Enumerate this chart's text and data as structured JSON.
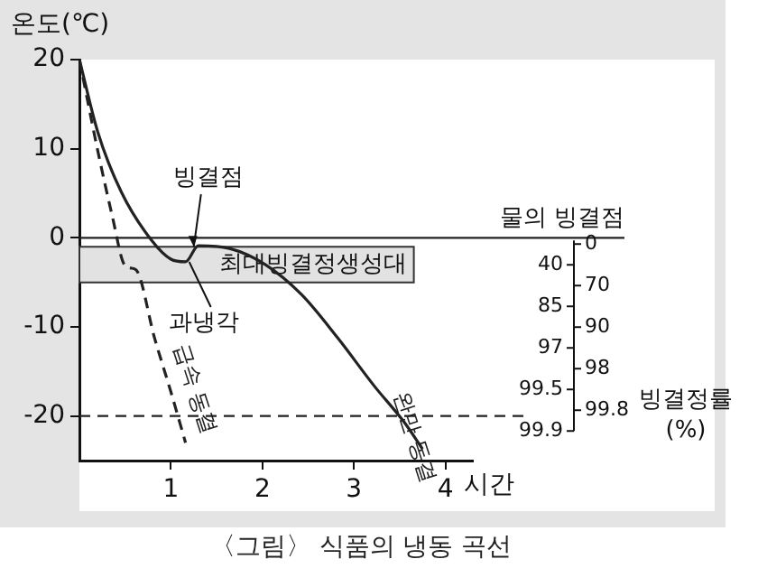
{
  "chart_data": {
    "type": "line",
    "ylabel": "온도(℃)",
    "xlabel": "시간",
    "annotations": [
      "〈그림〉 식품의 냉동 곡선",
      "빙결정률 (%)",
      "0",
      "40",
      "70",
      "85",
      "90",
      "97",
      "98",
      "99.5",
      "99.8",
      "99.9",
      {
        "text": "빙결점",
        "x": 1.25,
        "y": -1
      },
      {
        "text": "과냉각",
        "x": 1.2,
        "y": -2.7
      }
    ],
    "series": [
      {
        "name": "완만 동결",
        "color": "#222222",
        "line_style": "solid",
        "x": [
          0,
          0.2,
          0.46,
          0.79,
          1.0,
          1.16,
          1.3,
          1.64,
          2.03,
          2.43,
          2.82,
          3.22,
          3.55,
          3.75
        ],
        "values": [
          20,
          11.9,
          5.1,
          -0.3,
          -2.4,
          -2.7,
          -0.9,
          -1.2,
          -3,
          -6.4,
          -11.2,
          -16.6,
          -20.7,
          -23.7
        ]
      },
      {
        "name": "급속 동결",
        "color": "#222222",
        "line_style": "dashed",
        "x": [
          0,
          0.2,
          0.36,
          0.49,
          0.56,
          0.62,
          0.82,
          1.0,
          1.16
        ],
        "values": [
          20,
          9.8,
          2.4,
          -3,
          -3.4,
          -3.6,
          -11.2,
          -17.3,
          -23
        ]
      }
    ],
    "xlim": [
      0,
      4.3
    ],
    "xticks": [
      1,
      2,
      3,
      4
    ],
    "ylim": [
      -25,
      20
    ],
    "yticks": [
      -20,
      -10,
      0,
      10,
      20
    ],
    "ref_lines": [
      {
        "axis": "y",
        "value": 0,
        "label": "물의 빙결점",
        "line_style": "solid",
        "color": "#222222"
      },
      {
        "axis": "y",
        "value": -20,
        "line_style": "dashed",
        "color": "#222222"
      }
    ],
    "bands": [
      {
        "axis": "y",
        "from": -5,
        "to": -1,
        "label": "최대빙결정생성대",
        "color": "#e2e2e2"
      }
    ],
    "marker": "none",
    "legend": false,
    "grid": false
  }
}
